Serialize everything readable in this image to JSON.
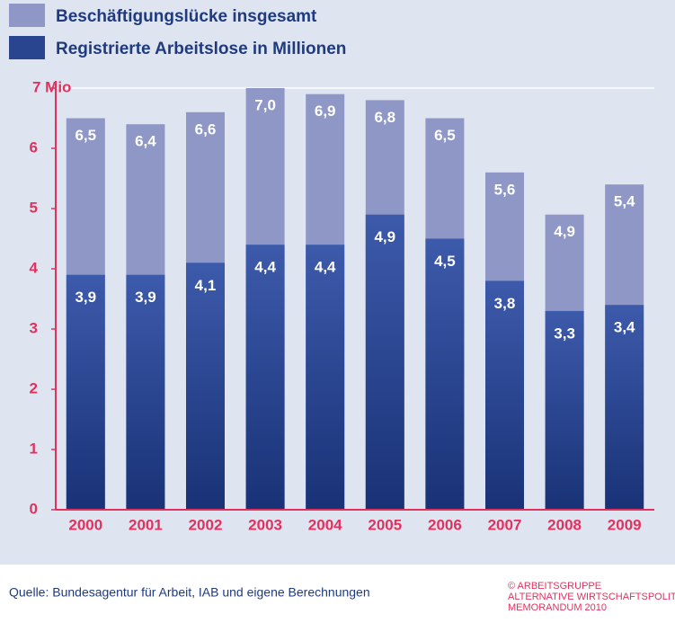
{
  "chart_data": {
    "type": "bar",
    "categories": [
      "2000",
      "2001",
      "2002",
      "2003",
      "2004",
      "2005",
      "2006",
      "2007",
      "2008",
      "2009"
    ],
    "series": [
      {
        "name": "Beschäftigungslücke insgesamt",
        "color": "#8e97c6",
        "values": [
          6.5,
          6.4,
          6.6,
          7.0,
          6.9,
          6.8,
          6.5,
          5.6,
          4.9,
          5.4
        ],
        "value_labels": [
          "6,5",
          "6,4",
          "6,6",
          "7,0",
          "6,9",
          "6,8",
          "6,5",
          "5,6",
          "4,9",
          "5,4"
        ]
      },
      {
        "name": "Registrierte Arbeitslose in Millionen",
        "color": "#2a4590",
        "values": [
          3.9,
          3.9,
          4.1,
          4.4,
          4.4,
          4.9,
          4.5,
          3.8,
          3.3,
          3.4
        ],
        "value_labels": [
          "3,9",
          "3,9",
          "4,1",
          "4,4",
          "4,4",
          "4,9",
          "4,5",
          "3,8",
          "3,3",
          "3,4"
        ]
      }
    ],
    "ylim": [
      0,
      7
    ],
    "yticks": [
      0,
      1,
      2,
      3,
      4,
      5,
      6,
      {
        "value": 7,
        "label": "7 Mio"
      }
    ],
    "grid": false,
    "source": "Quelle:  Bundesagentur für Arbeit, IAB und eigene Berechnungen",
    "credit": [
      "© ARBEITSGRUPPE",
      "ALTERNATIVE WIRTSCHAFTSPOLITIK",
      "MEMORANDUM 2010"
    ]
  }
}
